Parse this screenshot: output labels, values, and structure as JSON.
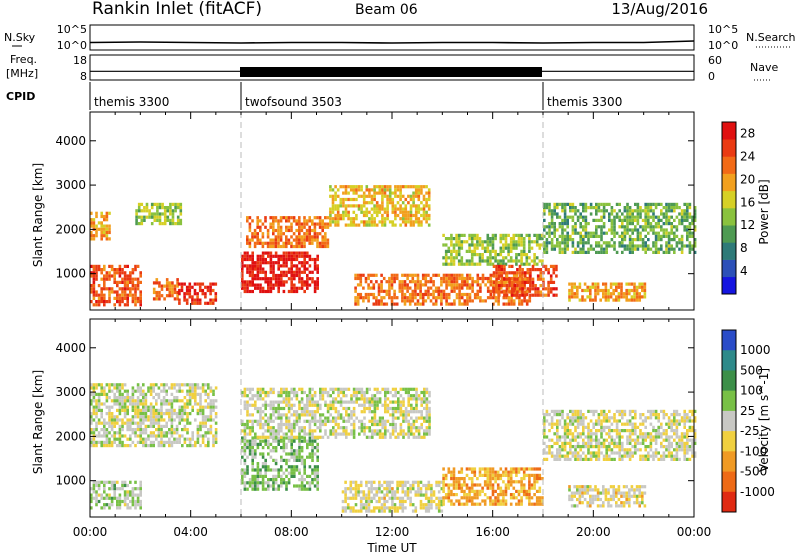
{
  "header": {
    "station": "Rankin Inlet (fitACF)",
    "beam": "Beam 06",
    "date": "13/Aug/2016"
  },
  "strip_labels": {
    "nsky": "N.Sky",
    "nsearch": "N.Search",
    "freq_line1": "Freq.",
    "freq_line2": "[MHz]",
    "nave": "Nave",
    "cpid": "CPID",
    "nsky_ticks": [
      "10^5",
      "10^0"
    ],
    "nsearch_ticks": [
      "10^5",
      "10^0"
    ],
    "freq_ticks": [
      "18",
      "8"
    ],
    "nave_ticks": [
      "60",
      "0"
    ]
  },
  "cpid_segments": [
    {
      "label": "themis 3300",
      "start_hour": 0,
      "end_hour": 6
    },
    {
      "label": "twofsound 3503",
      "start_hour": 6,
      "end_hour": 18
    },
    {
      "label": "themis 3300",
      "start_hour": 18,
      "end_hour": 24
    }
  ],
  "axes": {
    "xlabel": "Time UT",
    "x_ticks": [
      "00:00",
      "04:00",
      "08:00",
      "12:00",
      "16:00",
      "20:00",
      "00:00"
    ],
    "ylabel": "Slant Range [km]",
    "y_ticks": [
      "1000",
      "2000",
      "3000",
      "4000"
    ]
  },
  "power_colorbar": {
    "title": "Power [dB]",
    "ticks": [
      "4",
      "8",
      "12",
      "16",
      "20",
      "24",
      "28"
    ],
    "colors": [
      "#1515e0",
      "#2c50b8",
      "#2e7a78",
      "#4e9a52",
      "#8ac23e",
      "#d6d026",
      "#f2a01e",
      "#f26a16",
      "#ea3a12",
      "#e01010"
    ]
  },
  "velocity_colorbar": {
    "title": "Velocity [m s^-1]",
    "ticks": [
      "1000",
      "500",
      "100",
      "25",
      "-25",
      "-100",
      "-500",
      "-1000"
    ],
    "colors": [
      "#2a4cc8",
      "#2e8a8a",
      "#3c8f48",
      "#78c046",
      "#c8c8c4",
      "#f0d040",
      "#f09a24",
      "#ee6a16",
      "#e02a12"
    ]
  },
  "chart_data": [
    {
      "type": "line",
      "panel": "N.Sky / N.Search (noise levels)",
      "x_unit": "hours UT",
      "xlim": [
        0,
        24
      ],
      "series": [
        {
          "x": [
            0,
            2,
            4,
            6,
            8,
            10,
            12,
            14,
            16,
            18,
            20,
            22,
            24
          ],
          "values": [
            1.5,
            1.6,
            1.5,
            1.4,
            1.5,
            1.5,
            1.4,
            1.5,
            1.5,
            1.4,
            1.5,
            1.5,
            1.8
          ]
        }
      ]
    },
    {
      "type": "line",
      "panel": "Freq. [MHz] / Nave",
      "x_unit": "hours UT",
      "xlim": [
        0,
        24
      ],
      "ylim": [
        8,
        18
      ],
      "series": [
        {
          "x": [
            0,
            6,
            6,
            18,
            18,
            24
          ],
          "values": [
            11.5,
            11.5,
            11.5,
            11.5,
            11.5,
            11.5
          ]
        }
      ]
    },
    {
      "type": "heatmap",
      "panel": "Power",
      "xlim": [
        0,
        24
      ],
      "ylim": [
        180,
        4650
      ],
      "zlim": [
        0,
        30
      ],
      "z_unit": "dB",
      "echo_regions": [
        {
          "t0": 0.0,
          "t1": 2.0,
          "r0": 300,
          "r1": 1200,
          "z": 24
        },
        {
          "t0": 0.0,
          "t1": 0.8,
          "r0": 1800,
          "r1": 2400,
          "z": 20
        },
        {
          "t0": 1.8,
          "t1": 3.6,
          "r0": 2100,
          "r1": 2600,
          "z": 14
        },
        {
          "t0": 2.5,
          "t1": 3.5,
          "r0": 400,
          "r1": 900,
          "z": 22
        },
        {
          "t0": 3.5,
          "t1": 5.0,
          "r0": 300,
          "r1": 800,
          "z": 27
        },
        {
          "t0": 6.0,
          "t1": 9.0,
          "r0": 600,
          "r1": 1500,
          "z": 28
        },
        {
          "t0": 6.2,
          "t1": 9.5,
          "r0": 1600,
          "r1": 2300,
          "z": 22
        },
        {
          "t0": 9.5,
          "t1": 13.5,
          "r0": 2100,
          "r1": 3000,
          "z": 18
        },
        {
          "t0": 10.5,
          "t1": 17.5,
          "r0": 300,
          "r1": 1000,
          "z": 22
        },
        {
          "t0": 14.0,
          "t1": 18.0,
          "r0": 1200,
          "r1": 1900,
          "z": 14
        },
        {
          "t0": 16.0,
          "t1": 18.5,
          "r0": 500,
          "r1": 1200,
          "z": 24
        },
        {
          "t0": 18.0,
          "t1": 24.0,
          "r0": 1500,
          "r1": 2600,
          "z": 12
        },
        {
          "t0": 19.0,
          "t1": 22.0,
          "r0": 400,
          "r1": 800,
          "z": 20
        }
      ]
    },
    {
      "type": "heatmap",
      "panel": "Velocity",
      "xlim": [
        0,
        24
      ],
      "ylim": [
        180,
        4650
      ],
      "zlim": [
        -1000,
        1000
      ],
      "z_unit": "m s^-1",
      "echo_regions": [
        {
          "t0": 0.0,
          "t1": 5.0,
          "r0": 1800,
          "r1": 3200,
          "z": 0
        },
        {
          "t0": 0.0,
          "t1": 2.0,
          "r0": 400,
          "r1": 1000,
          "z": 110
        },
        {
          "t0": 6.0,
          "t1": 9.0,
          "r0": 800,
          "r1": 2000,
          "z": 200
        },
        {
          "t0": 6.0,
          "t1": 13.5,
          "r0": 2000,
          "r1": 3100,
          "z": 0
        },
        {
          "t0": 10.0,
          "t1": 14.0,
          "r0": 300,
          "r1": 1000,
          "z": -90
        },
        {
          "t0": 14.0,
          "t1": 18.0,
          "r0": 500,
          "r1": 1300,
          "z": -400
        },
        {
          "t0": 18.0,
          "t1": 24.0,
          "r0": 1500,
          "r1": 2600,
          "z": -30
        },
        {
          "t0": 19.0,
          "t1": 22.0,
          "r0": 400,
          "r1": 900,
          "z": -120
        }
      ]
    }
  ]
}
